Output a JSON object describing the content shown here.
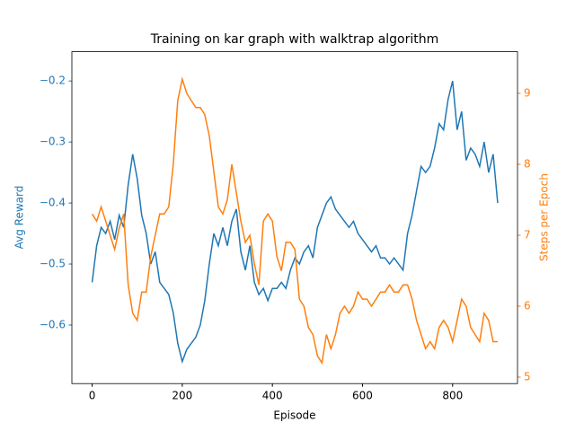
{
  "chart_data": {
    "type": "line",
    "title": "Training on kar graph with walktrap algorithm",
    "x_label": "Episode",
    "y_label": "Avg Reward",
    "y2_label": "Steps per Epoch",
    "x": [
      0,
      10,
      20,
      30,
      40,
      50,
      60,
      70,
      80,
      90,
      100,
      110,
      120,
      130,
      140,
      150,
      160,
      170,
      180,
      190,
      200,
      210,
      220,
      230,
      240,
      250,
      260,
      270,
      280,
      290,
      300,
      310,
      320,
      330,
      340,
      350,
      360,
      370,
      380,
      390,
      400,
      410,
      420,
      430,
      440,
      450,
      460,
      470,
      480,
      490,
      500,
      510,
      520,
      530,
      540,
      550,
      560,
      570,
      580,
      590,
      600,
      610,
      620,
      630,
      640,
      650,
      660,
      670,
      680,
      690,
      700,
      710,
      720,
      730,
      740,
      750,
      760,
      770,
      780,
      790,
      800,
      810,
      820,
      830,
      840,
      850,
      860,
      870,
      880,
      890,
      900
    ],
    "series": [
      {
        "color": "#1f77b4",
        "values": [
          -0.53,
          -0.47,
          -0.44,
          -0.45,
          -0.43,
          -0.46,
          -0.42,
          -0.44,
          -0.37,
          -0.32,
          -0.36,
          -0.42,
          -0.45,
          -0.5,
          -0.48,
          -0.53,
          -0.54,
          -0.55,
          -0.58,
          -0.63,
          -0.66,
          -0.64,
          -0.63,
          -0.62,
          -0.6,
          -0.56,
          -0.5,
          -0.45,
          -0.47,
          -0.44,
          -0.47,
          -0.43,
          -0.41,
          -0.48,
          -0.51,
          -0.47,
          -0.53,
          -0.55,
          -0.54,
          -0.56,
          -0.54,
          -0.54,
          -0.53,
          -0.54,
          -0.51,
          -0.49,
          -0.5,
          -0.48,
          -0.47,
          -0.49,
          -0.44,
          -0.42,
          -0.4,
          -0.39,
          -0.41,
          -0.42,
          -0.43,
          -0.44,
          -0.43,
          -0.45,
          -0.46,
          -0.47,
          -0.48,
          -0.47,
          -0.49,
          -0.49,
          -0.5,
          -0.49,
          -0.5,
          -0.51,
          -0.45,
          -0.42,
          -0.38,
          -0.34,
          -0.35,
          -0.34,
          -0.31,
          -0.27,
          -0.28,
          -0.23,
          -0.2,
          -0.28,
          -0.25,
          -0.33,
          -0.31,
          -0.32,
          -0.34,
          -0.3,
          -0.35,
          -0.32,
          -0.4
        ]
      },
      {
        "color": "#ff7f0e",
        "axis": "y2",
        "values": [
          7.3,
          7.2,
          7.4,
          7.2,
          7.0,
          6.8,
          7.1,
          7.3,
          6.3,
          5.9,
          5.8,
          6.2,
          6.2,
          6.7,
          7.0,
          7.3,
          7.3,
          7.4,
          8.0,
          8.9,
          9.2,
          9.0,
          8.9,
          8.8,
          8.8,
          8.7,
          8.4,
          7.9,
          7.4,
          7.3,
          7.5,
          8.0,
          7.6,
          7.2,
          6.9,
          7.0,
          6.6,
          6.3,
          7.2,
          7.3,
          7.2,
          6.7,
          6.5,
          6.9,
          6.9,
          6.8,
          6.1,
          6.0,
          5.7,
          5.6,
          5.3,
          5.2,
          5.6,
          5.4,
          5.6,
          5.9,
          6.0,
          5.9,
          6.0,
          6.2,
          6.1,
          6.1,
          6.0,
          6.1,
          6.2,
          6.2,
          6.3,
          6.2,
          6.2,
          6.3,
          6.3,
          6.1,
          5.8,
          5.6,
          5.4,
          5.5,
          5.4,
          5.7,
          5.8,
          5.7,
          5.5,
          5.8,
          6.1,
          6.0,
          5.7,
          5.6,
          5.5,
          5.9,
          5.8,
          5.5,
          5.5
        ]
      }
    ],
    "xlim": [
      -45,
      944
    ],
    "xticks": [
      0,
      200,
      400,
      600,
      800
    ],
    "ylim": [
      -0.696,
      -0.152
    ],
    "yticks": [
      {
        "value": -0.6,
        "label": "−0.6"
      },
      {
        "value": -0.5,
        "label": "−0.5"
      },
      {
        "value": -0.4,
        "label": "−0.4"
      },
      {
        "value": -0.3,
        "label": "−0.3"
      },
      {
        "value": -0.2,
        "label": "−0.2"
      }
    ],
    "y2lim": [
      4.909,
      9.587
    ],
    "y2ticks": [
      5,
      6,
      7,
      8,
      9
    ]
  }
}
